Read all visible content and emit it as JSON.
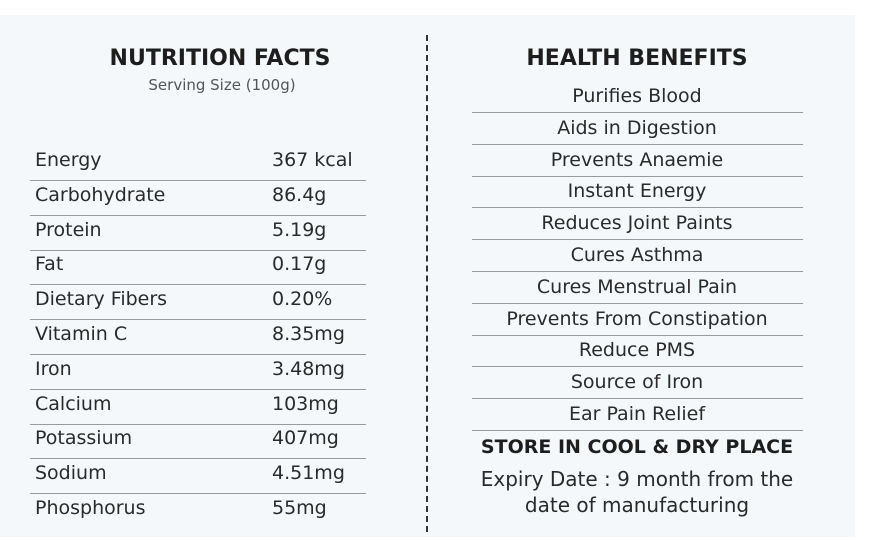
{
  "nutrition": {
    "title": "NUTRITION FACTS",
    "subtitle": "Serving Size (100g)",
    "rows": [
      [
        "Energy",
        "367 kcal"
      ],
      [
        "Carbohydrate",
        "86.4g"
      ],
      [
        "Protein",
        "5.19g"
      ],
      [
        "Fat",
        "0.17g"
      ],
      [
        "Dietary Fibers",
        "0.20%"
      ],
      [
        "Vitamin C",
        "8.35mg"
      ],
      [
        "Iron",
        "3.48mg"
      ],
      [
        "Calcium",
        "103mg"
      ],
      [
        "Potassium",
        "407mg"
      ],
      [
        "Sodium",
        "4.51mg"
      ],
      [
        "Phosphorus",
        "55mg"
      ]
    ]
  },
  "benefits": {
    "title": "HEALTH BENEFITS",
    "items": [
      "Purifies Blood",
      "Aids in Digestion",
      "Prevents Anaemie",
      "Instant Energy",
      "Reduces Joint Paints",
      "Cures Asthma",
      "Cures Menstrual Pain",
      "Prevents From Constipation",
      "Reduce PMS",
      "Source of Iron",
      "Ear Pain Relief"
    ],
    "storage": "STORE IN COOL & DRY PLACE",
    "expiry": [
      "Expiry Date : 9 month from the",
      "date of manufacturing"
    ]
  }
}
